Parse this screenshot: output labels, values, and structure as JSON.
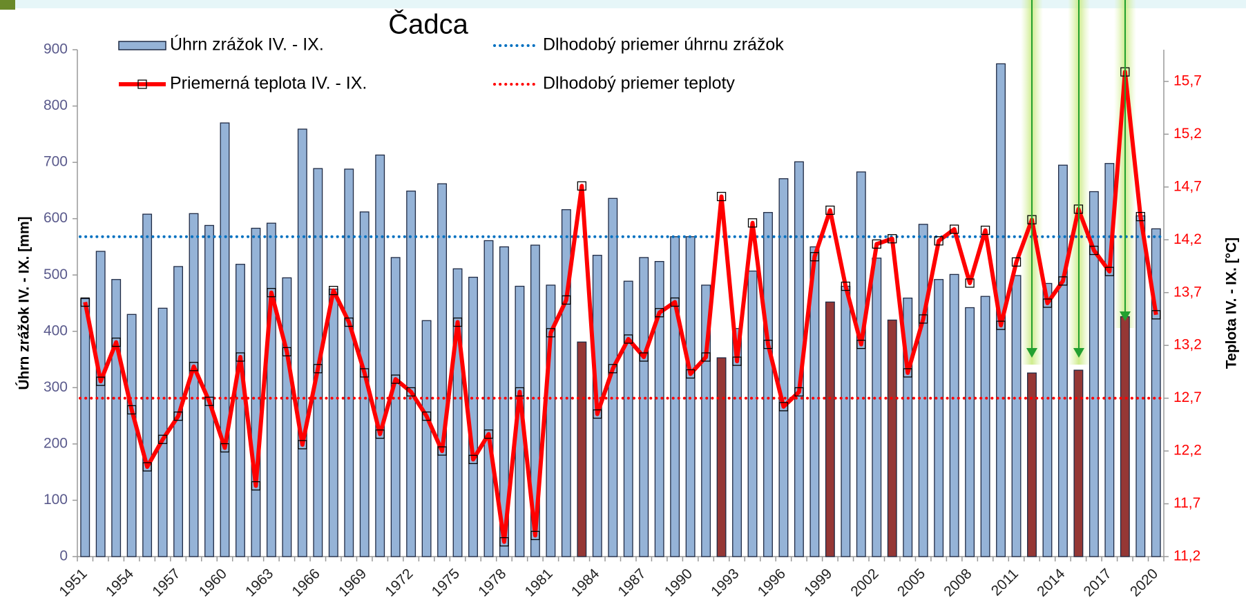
{
  "chart_data": {
    "type": "bar-line",
    "title": "Čadca",
    "y_label": "Úhrn zrážok IV. - IX. [mm]",
    "y2_label": "Teplota IV. - IX.  [°C]",
    "categories": [
      "1951",
      null,
      null,
      "1954",
      null,
      null,
      "1957",
      null,
      null,
      "1960",
      null,
      null,
      "1963",
      null,
      null,
      "1966",
      null,
      null,
      "1969",
      null,
      null,
      "1972",
      null,
      null,
      "1975",
      null,
      null,
      "1978",
      null,
      null,
      "1981",
      null,
      null,
      "1984",
      null,
      null,
      "1987",
      null,
      null,
      "1990",
      null,
      null,
      "1993",
      null,
      null,
      "1996",
      null,
      null,
      "1999",
      null,
      null,
      "2002",
      null,
      null,
      "2005",
      null,
      null,
      "2008",
      null,
      null,
      "2011",
      null,
      null,
      "2014",
      null,
      null,
      "2017",
      null,
      null,
      "2020"
    ],
    "series": [
      {
        "name": "Úhrn zrážok IV. - IX.",
        "type": "bar",
        "color": "#95b3d7",
        "colors": [
          "#95b3d7",
          "#95b3d7",
          "#95b3d7",
          "#95b3d7",
          "#95b3d7",
          "#95b3d7",
          "#95b3d7",
          "#95b3d7",
          "#95b3d7",
          "#95b3d7",
          "#95b3d7",
          "#95b3d7",
          "#95b3d7",
          "#95b3d7",
          "#95b3d7",
          "#95b3d7",
          "#95b3d7",
          "#95b3d7",
          "#95b3d7",
          "#95b3d7",
          "#95b3d7",
          "#95b3d7",
          "#95b3d7",
          "#95b3d7",
          "#95b3d7",
          "#95b3d7",
          "#95b3d7",
          "#95b3d7",
          "#95b3d7",
          "#95b3d7",
          "#95b3d7",
          "#95b3d7",
          "#953735",
          "#95b3d7",
          "#95b3d7",
          "#95b3d7",
          "#95b3d7",
          "#95b3d7",
          "#95b3d7",
          "#95b3d7",
          "#95b3d7",
          "#953735",
          "#95b3d7",
          "#95b3d7",
          "#95b3d7",
          "#95b3d7",
          "#95b3d7",
          "#95b3d7",
          "#953735",
          "#95b3d7",
          "#95b3d7",
          "#95b3d7",
          "#953735",
          "#95b3d7",
          "#95b3d7",
          "#95b3d7",
          "#95b3d7",
          "#95b3d7",
          "#95b3d7",
          "#95b3d7",
          "#95b3d7",
          "#953735",
          "#95b3d7",
          "#95b3d7",
          "#953735",
          "#95b3d7",
          "#95b3d7",
          "#953735",
          "#95b3d7",
          "#95b3d7"
        ],
        "values": [
          458,
          542,
          492,
          430,
          608,
          441,
          515,
          609,
          588,
          770,
          519,
          583,
          592,
          495,
          759,
          689,
          475,
          688,
          612,
          713,
          531,
          649,
          419,
          662,
          511,
          496,
          561,
          550,
          480,
          553,
          482,
          616,
          381,
          535,
          636,
          489,
          531,
          524,
          568,
          568,
          482,
          353,
          405,
          507,
          611,
          671,
          701,
          550,
          452,
          480,
          683,
          530,
          420,
          459,
          590,
          492,
          501,
          442,
          462,
          875,
          499,
          326,
          485,
          695,
          331,
          648,
          698,
          426,
          605,
          582
        ]
      },
      {
        "name": "Priemerná teplota IV. - IX.",
        "type": "line",
        "axis": "y2",
        "color": "#ff0000",
        "values": [
          13.61,
          12.86,
          13.23,
          12.59,
          12.05,
          12.31,
          12.53,
          13.0,
          12.67,
          12.23,
          13.09,
          11.87,
          13.7,
          13.14,
          12.26,
          12.98,
          13.72,
          13.42,
          12.94,
          12.36,
          12.88,
          12.76,
          12.53,
          12.2,
          13.42,
          12.12,
          12.36,
          11.34,
          12.76,
          11.4,
          13.32,
          13.63,
          14.71,
          12.55,
          12.98,
          13.26,
          13.09,
          13.51,
          13.61,
          12.93,
          13.09,
          14.61,
          13.05,
          14.36,
          13.21,
          12.62,
          12.76,
          14.04,
          14.48,
          13.76,
          13.21,
          14.16,
          14.21,
          12.94,
          13.45,
          14.19,
          14.3,
          13.79,
          14.29,
          13.39,
          13.99,
          14.39,
          13.6,
          13.81,
          14.49,
          14.1,
          13.9,
          15.79,
          14.42,
          13.49
        ]
      }
    ],
    "reference_lines": [
      {
        "name": "Dlhodobý priemer úhrnu zrážok",
        "value": 568,
        "color": "#0070c0"
      },
      {
        "name": "Dlhodobý priemer teploty",
        "value": 12.7,
        "axis": "y2",
        "color": "#ff0000"
      }
    ],
    "ylim": [
      0,
      900
    ],
    "yticks": [
      0,
      100,
      200,
      300,
      400,
      500,
      600,
      700,
      800,
      900
    ],
    "y2lim": [
      11.2,
      16.0
    ],
    "y2ticks": [
      {
        "value": 11.2,
        "label": "11,2"
      },
      {
        "value": 11.7,
        "label": "11,7"
      },
      {
        "value": 12.2,
        "label": "12,2"
      },
      {
        "value": 12.7,
        "label": "12,7"
      },
      {
        "value": 13.2,
        "label": "13,2"
      },
      {
        "value": 13.7,
        "label": "13,7"
      },
      {
        "value": 14.2,
        "label": "14,2"
      },
      {
        "value": 14.7,
        "label": "14,7"
      },
      {
        "value": 15.2,
        "label": "15,2"
      },
      {
        "value": 15.7,
        "label": "15,7"
      }
    ],
    "grid": false
  }
}
